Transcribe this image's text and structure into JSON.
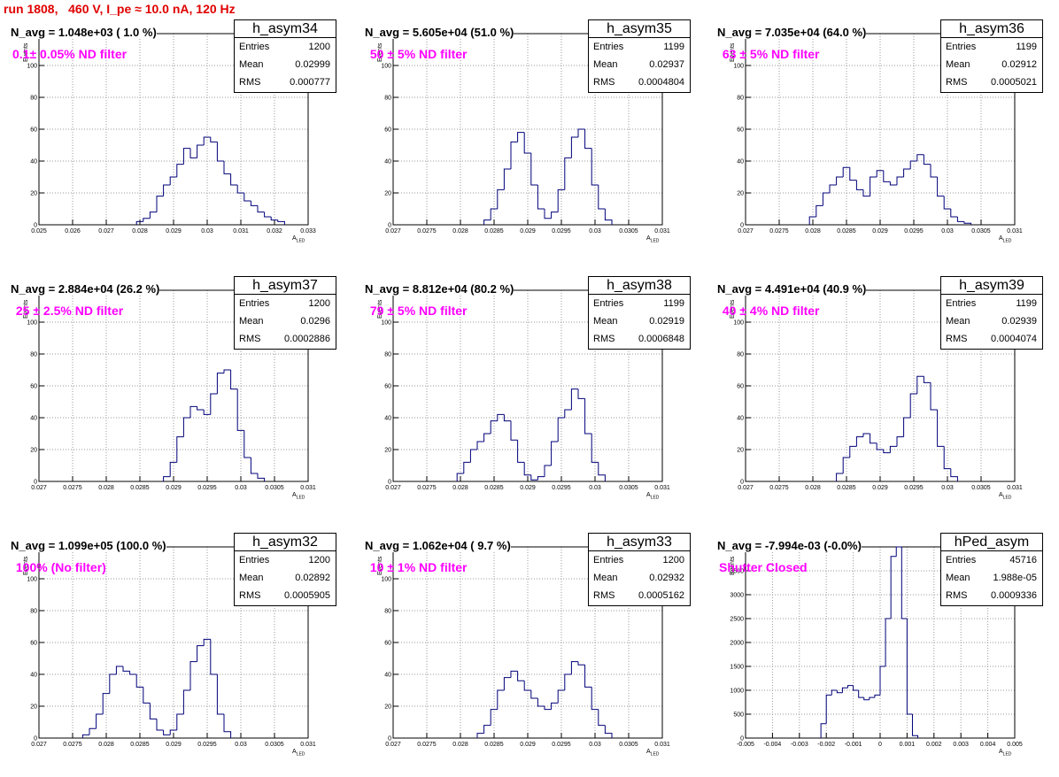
{
  "title": "run 1808,   460 V, I_pe ≈ 10.0 nA, 120 Hz",
  "colors": {
    "title": "#e00000",
    "filter": "#ff00ff",
    "hist": "#00007a"
  },
  "axis_labels": {
    "y": "Events",
    "x": "A",
    "x_sub": "LED"
  },
  "chart_data": [
    {
      "type": "bar",
      "name": "h_asym34",
      "n_avg": "N_avg = 1.048e+03 ( 1.0 %)",
      "filter": "0.1± 0.05% ND filter",
      "stats": {
        "entries": "1200",
        "mean": "0.02999",
        "rms": "0.000777"
      },
      "xlim": [
        0.025,
        0.033
      ],
      "ylim": [
        0,
        120
      ],
      "xticks": [
        "0.025",
        "0.026",
        "0.027",
        "0.028",
        "0.029",
        "0.03",
        "0.031",
        "0.032",
        "0.033"
      ],
      "yticks": [
        "0",
        "20",
        "40",
        "60",
        "80",
        "100",
        "120"
      ],
      "ylabel": "Events",
      "xlabel": "A_LED",
      "grid": true,
      "x": [
        0.028,
        0.0282,
        0.0284,
        0.0286,
        0.0288,
        0.029,
        0.0292,
        0.0294,
        0.0296,
        0.0298,
        0.03,
        0.0302,
        0.0304,
        0.0306,
        0.0308,
        0.031,
        0.0312,
        0.0314,
        0.0316,
        0.0318,
        0.032,
        0.0322
      ],
      "values": [
        2,
        4,
        8,
        18,
        25,
        30,
        38,
        48,
        42,
        50,
        55,
        52,
        40,
        32,
        25,
        20,
        15,
        12,
        8,
        5,
        3,
        2
      ]
    },
    {
      "type": "bar",
      "name": "h_asym35",
      "n_avg": "N_avg = 5.605e+04 (51.0 %)",
      "filter": " 50 ± 5% ND filter",
      "stats": {
        "entries": "1199",
        "mean": "0.02937",
        "rms": "0.0004804"
      },
      "xlim": [
        0.027,
        0.031
      ],
      "ylim": [
        0,
        120
      ],
      "xticks": [
        "0.027",
        "0.0275",
        "0.028",
        "0.0285",
        "0.029",
        "0.0295",
        "0.03",
        "0.0305",
        "0.031"
      ],
      "yticks": [
        "0",
        "20",
        "40",
        "60",
        "80",
        "100",
        "120"
      ],
      "ylabel": "Events",
      "xlabel": "A_LED",
      "grid": true,
      "x": [
        0.0284,
        0.0285,
        0.0286,
        0.0287,
        0.0288,
        0.0289,
        0.029,
        0.0291,
        0.0292,
        0.0293,
        0.0294,
        0.0295,
        0.0296,
        0.0297,
        0.0298,
        0.0299,
        0.03,
        0.0301,
        0.0302
      ],
      "values": [
        3,
        10,
        22,
        35,
        52,
        58,
        45,
        25,
        10,
        4,
        8,
        22,
        42,
        55,
        60,
        48,
        25,
        10,
        3
      ]
    },
    {
      "type": "bar",
      "name": "h_asym36",
      "n_avg": "N_avg = 7.035e+04 (64.0 %)",
      "filter": " 63 ± 5% ND filter",
      "stats": {
        "entries": "1199",
        "mean": "0.02912",
        "rms": "0.0005021"
      },
      "xlim": [
        0.027,
        0.031
      ],
      "ylim": [
        0,
        120
      ],
      "xticks": [
        "0.027",
        "0.0275",
        "0.028",
        "0.0285",
        "0.029",
        "0.0295",
        "0.03",
        "0.0305",
        "0.031"
      ],
      "yticks": [
        "0",
        "20",
        "40",
        "60",
        "80",
        "100",
        "120"
      ],
      "ylabel": "Events",
      "xlabel": "A_LED",
      "grid": true,
      "x": [
        0.028,
        0.0281,
        0.0282,
        0.0283,
        0.0284,
        0.0285,
        0.0286,
        0.0287,
        0.0288,
        0.0289,
        0.029,
        0.0291,
        0.0292,
        0.0293,
        0.0294,
        0.0295,
        0.0296,
        0.0297,
        0.0298,
        0.0299,
        0.03,
        0.0301,
        0.0302,
        0.0303
      ],
      "values": [
        5,
        12,
        20,
        25,
        30,
        36,
        28,
        22,
        18,
        30,
        34,
        27,
        25,
        30,
        35,
        40,
        44,
        38,
        30,
        18,
        10,
        5,
        2,
        1
      ]
    },
    {
      "type": "bar",
      "name": "h_asym37",
      "n_avg": "N_avg = 2.884e+04 (26.2 %)",
      "filter": " 25 ± 2.5% ND filter",
      "stats": {
        "entries": "1200",
        "mean": "0.0296",
        "rms": "0.0002886"
      },
      "xlim": [
        0.027,
        0.031
      ],
      "ylim": [
        0,
        120
      ],
      "xticks": [
        "0.027",
        "0.0275",
        "0.028",
        "0.0285",
        "0.029",
        "0.0295",
        "0.03",
        "0.0305",
        "0.031"
      ],
      "yticks": [
        "0",
        "20",
        "40",
        "60",
        "80",
        "100",
        "120"
      ],
      "ylabel": "Events",
      "xlabel": "A_LED",
      "grid": true,
      "x": [
        0.0289,
        0.029,
        0.0291,
        0.0292,
        0.0293,
        0.0294,
        0.0295,
        0.0296,
        0.0297,
        0.0298,
        0.0299,
        0.03,
        0.0301,
        0.0302,
        0.0303
      ],
      "values": [
        3,
        12,
        28,
        40,
        47,
        45,
        42,
        55,
        68,
        70,
        58,
        32,
        15,
        5,
        2
      ]
    },
    {
      "type": "bar",
      "name": "h_asym38",
      "n_avg": "N_avg = 8.812e+04 (80.2 %)",
      "filter": " 79 ± 5% ND filter",
      "stats": {
        "entries": "1199",
        "mean": "0.02919",
        "rms": "0.0006848"
      },
      "xlim": [
        0.027,
        0.031
      ],
      "ylim": [
        0,
        120
      ],
      "xticks": [
        "0.027",
        "0.0275",
        "0.028",
        "0.0285",
        "0.029",
        "0.0295",
        "0.03",
        "0.0305",
        "0.031"
      ],
      "yticks": [
        "0",
        "20",
        "40",
        "60",
        "80",
        "100",
        "120"
      ],
      "ylabel": "Events",
      "xlabel": "A_LED",
      "grid": true,
      "x": [
        0.028,
        0.0281,
        0.0282,
        0.0283,
        0.0284,
        0.0285,
        0.0286,
        0.0287,
        0.0288,
        0.0289,
        0.029,
        0.0291,
        0.0292,
        0.0293,
        0.0294,
        0.0295,
        0.0296,
        0.0297,
        0.0298,
        0.0299,
        0.03,
        0.0301
      ],
      "values": [
        5,
        12,
        20,
        25,
        30,
        38,
        42,
        38,
        26,
        12,
        4,
        1,
        3,
        10,
        25,
        40,
        45,
        58,
        52,
        30,
        12,
        4
      ]
    },
    {
      "type": "bar",
      "name": "h_asym39",
      "n_avg": "N_avg = 4.491e+04 (40.9 %)",
      "filter": " 40 ± 4% ND filter",
      "stats": {
        "entries": "1199",
        "mean": "0.02939",
        "rms": "0.0004074"
      },
      "xlim": [
        0.027,
        0.031
      ],
      "ylim": [
        0,
        120
      ],
      "xticks": [
        "0.027",
        "0.0275",
        "0.028",
        "0.0285",
        "0.029",
        "0.0295",
        "0.03",
        "0.0305",
        "0.031"
      ],
      "yticks": [
        "0",
        "20",
        "40",
        "60",
        "80",
        "100",
        "120"
      ],
      "ylabel": "Events",
      "xlabel": "A_LED",
      "grid": true,
      "x": [
        0.0284,
        0.0285,
        0.0286,
        0.0287,
        0.0288,
        0.0289,
        0.029,
        0.0291,
        0.0292,
        0.0293,
        0.0294,
        0.0295,
        0.0296,
        0.0297,
        0.0298,
        0.0299,
        0.03,
        0.0301
      ],
      "values": [
        5,
        15,
        22,
        28,
        30,
        24,
        20,
        18,
        22,
        28,
        40,
        55,
        66,
        62,
        45,
        22,
        8,
        3
      ]
    },
    {
      "type": "bar",
      "name": "h_asym32",
      "n_avg": "N_avg = 1.099e+05 (100.0 %)",
      "filter": " 100% (No filter)",
      "stats": {
        "entries": "1200",
        "mean": "0.02892",
        "rms": "0.0005905"
      },
      "xlim": [
        0.027,
        0.031
      ],
      "ylim": [
        0,
        120
      ],
      "xticks": [
        "0.027",
        "0.0275",
        "0.028",
        "0.0285",
        "0.029",
        "0.0295",
        "0.03",
        "0.0305",
        "0.031"
      ],
      "yticks": [
        "0",
        "20",
        "40",
        "60",
        "80",
        "100",
        "120"
      ],
      "ylabel": "Events",
      "xlabel": "A_LED",
      "grid": true,
      "x": [
        0.0277,
        0.0278,
        0.0279,
        0.028,
        0.0281,
        0.0282,
        0.0283,
        0.0284,
        0.0285,
        0.0286,
        0.0287,
        0.0288,
        0.0289,
        0.029,
        0.0291,
        0.0292,
        0.0293,
        0.0294,
        0.0295,
        0.0296,
        0.0297,
        0.0298
      ],
      "values": [
        2,
        6,
        15,
        28,
        40,
        45,
        42,
        40,
        32,
        22,
        12,
        5,
        2,
        5,
        15,
        30,
        48,
        58,
        62,
        40,
        15,
        4
      ]
    },
    {
      "type": "bar",
      "name": "h_asym33",
      "n_avg": "N_avg = 1.062e+04 ( 9.7 %)",
      "filter": " 10 ± 1% ND filter",
      "stats": {
        "entries": "1200",
        "mean": "0.02932",
        "rms": "0.0005162"
      },
      "xlim": [
        0.027,
        0.031
      ],
      "ylim": [
        0,
        120
      ],
      "xticks": [
        "0.027",
        "0.0275",
        "0.028",
        "0.0285",
        "0.029",
        "0.0295",
        "0.03",
        "0.0305",
        "0.031"
      ],
      "yticks": [
        "0",
        "20",
        "40",
        "60",
        "80",
        "100",
        "120"
      ],
      "ylabel": "Events",
      "xlabel": "A_LED",
      "grid": true,
      "x": [
        0.0283,
        0.0284,
        0.0285,
        0.0286,
        0.0287,
        0.0288,
        0.0289,
        0.029,
        0.0291,
        0.0292,
        0.0293,
        0.0294,
        0.0295,
        0.0296,
        0.0297,
        0.0298,
        0.0299,
        0.03,
        0.0301,
        0.0302
      ],
      "values": [
        3,
        8,
        18,
        30,
        38,
        42,
        36,
        30,
        25,
        20,
        18,
        22,
        30,
        40,
        48,
        46,
        32,
        18,
        8,
        3
      ]
    },
    {
      "type": "bar",
      "name": "hPed_asym",
      "n_avg": "N_avg = -7.994e-03 (-0.0%)",
      "filter": "Shutter Closed",
      "stats": {
        "entries": "45716",
        "mean": "1.988e-05",
        "rms": "0.0009336"
      },
      "xlim": [
        -0.005,
        0.005
      ],
      "ylim": [
        0,
        4000
      ],
      "xticks": [
        "-0.005",
        "-0.004",
        "-0.003",
        "-0.002",
        "-0.001",
        "0",
        "0.001",
        "0.002",
        "0.003",
        "0.004",
        "0.005"
      ],
      "yticks": [
        "0",
        "500",
        "1000",
        "1500",
        "2000",
        "2500",
        "3000",
        "3500",
        "4000"
      ],
      "ylabel": "Events",
      "xlabel": "A_LED",
      "grid": true,
      "x": [
        -0.0021,
        -0.0019,
        -0.0017,
        -0.0015,
        -0.0013,
        -0.0011,
        -0.0009,
        -0.0007,
        -0.0005,
        -0.0003,
        -0.0001,
        0.0001,
        0.0003,
        0.0005,
        0.0007,
        0.0009,
        0.0011,
        0.0013
      ],
      "values": [
        300,
        900,
        1000,
        950,
        1050,
        1100,
        1000,
        850,
        800,
        850,
        900,
        1500,
        2500,
        3800,
        4000,
        2500,
        500,
        50
      ]
    }
  ]
}
